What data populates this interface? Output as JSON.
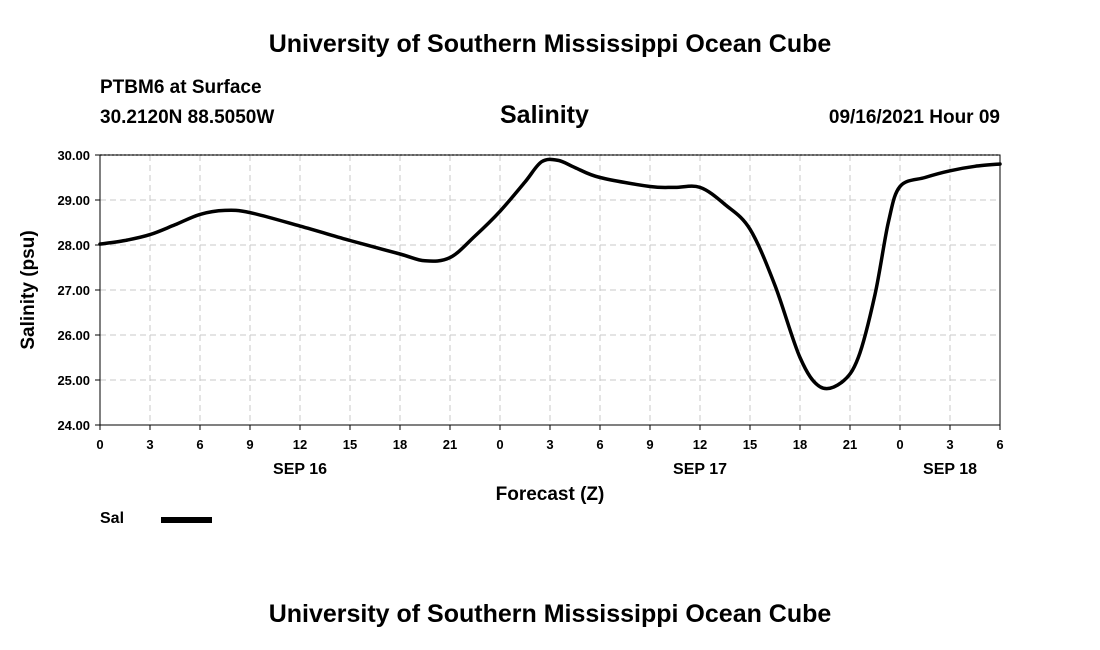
{
  "header": {
    "title_top": "University of Southern Mississippi Ocean Cube",
    "station": "PTBM6 at Surface",
    "coords": "30.2120N  88.5050W",
    "chart_title": "Salinity",
    "datetime": "09/16/2021 Hour 09"
  },
  "footer": {
    "title_bottom": "University of Southern Mississippi Ocean Cube"
  },
  "legend": {
    "label": "Sal"
  },
  "chart_data": {
    "type": "line",
    "title": "Salinity",
    "xlabel": "Forecast (Z)",
    "ylabel": "Salinity (psu)",
    "xlim": [
      0,
      54
    ],
    "ylim": [
      24,
      30
    ],
    "x_unit": "hours from 09/16 00Z",
    "x_ticks": [
      0,
      3,
      6,
      9,
      12,
      15,
      18,
      21,
      24,
      27,
      30,
      33,
      36,
      39,
      42,
      45,
      48,
      51,
      54
    ],
    "x_tick_labels": [
      "0",
      "3",
      "6",
      "9",
      "12",
      "15",
      "18",
      "21",
      "0",
      "3",
      "6",
      "9",
      "12",
      "15",
      "18",
      "21",
      "0",
      "3",
      "6"
    ],
    "y_ticks": [
      24,
      25,
      26,
      27,
      28,
      29,
      30
    ],
    "y_tick_labels": [
      "24.00",
      "25.00",
      "26.00",
      "27.00",
      "28.00",
      "29.00",
      "30.00"
    ],
    "day_labels": [
      {
        "x": 12,
        "label": "SEP 16"
      },
      {
        "x": 36,
        "label": "SEP 17"
      },
      {
        "x": 51,
        "label": "SEP 18"
      }
    ],
    "grid": true,
    "series": [
      {
        "name": "Sal",
        "x": [
          0,
          1.5,
          3,
          4.5,
          6,
          7.5,
          9,
          12,
          15,
          18,
          19.5,
          21,
          22.5,
          24,
          25.5,
          26.5,
          27.5,
          28.5,
          30,
          33,
          34.5,
          36,
          37.5,
          39,
          40.5,
          42,
          43.2,
          44.5,
          45.5,
          46.5,
          47.3,
          48,
          49.5,
          51,
          52.5,
          54
        ],
        "values": [
          28.02,
          28.1,
          28.23,
          28.45,
          28.68,
          28.77,
          28.72,
          28.42,
          28.1,
          27.8,
          27.65,
          27.72,
          28.2,
          28.75,
          29.4,
          29.85,
          29.88,
          29.72,
          29.5,
          29.3,
          29.28,
          29.28,
          28.9,
          28.35,
          27.1,
          25.5,
          24.85,
          24.95,
          25.5,
          26.9,
          28.5,
          29.3,
          29.5,
          29.65,
          29.75,
          29.8
        ]
      }
    ]
  }
}
